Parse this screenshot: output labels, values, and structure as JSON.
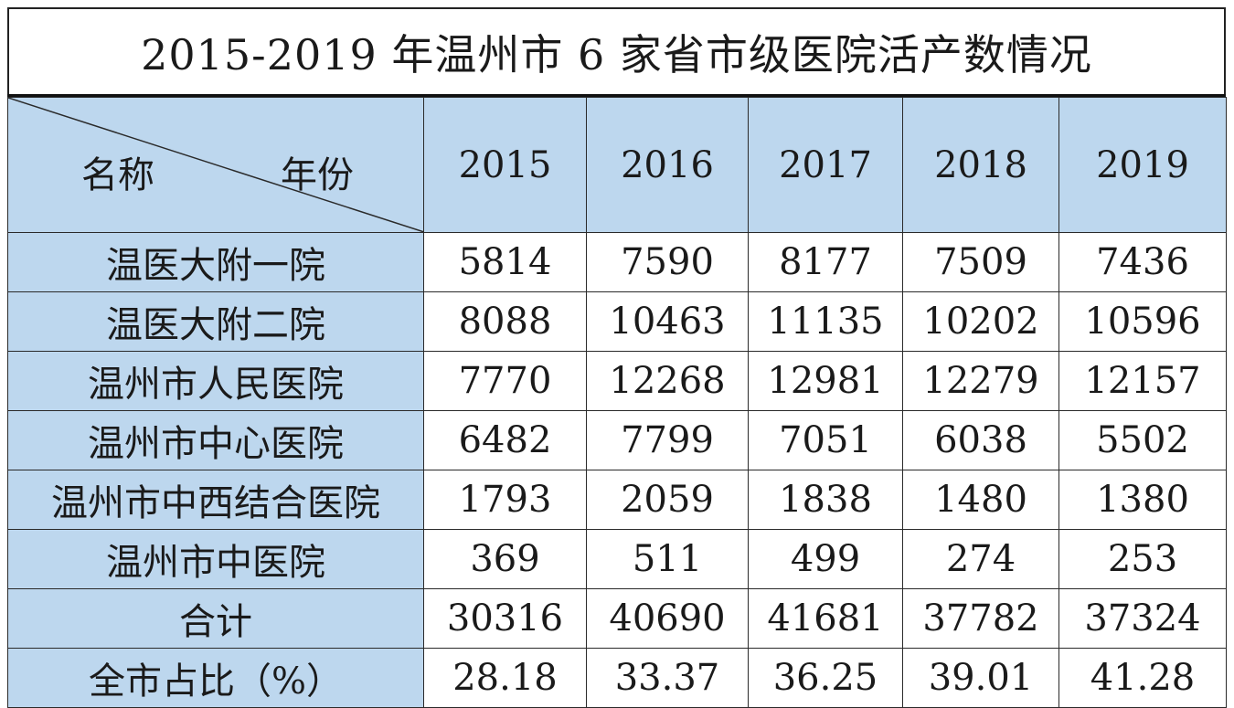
{
  "title": "2015-2019 年温州市 6 家省市级医院活产数情况",
  "header": {
    "corner_left": "名称",
    "corner_right": "年份",
    "years": [
      "2015",
      "2016",
      "2017",
      "2018",
      "2019"
    ]
  },
  "rows": [
    {
      "name": "温医大附一院",
      "values": [
        "5814",
        "7590",
        "8177",
        "7509",
        "7436"
      ]
    },
    {
      "name": "温医大附二院",
      "values": [
        "8088",
        "10463",
        "11135",
        "10202",
        "10596"
      ]
    },
    {
      "name": "温州市人民医院",
      "values": [
        "7770",
        "12268",
        "12981",
        "12279",
        "12157"
      ]
    },
    {
      "name": "温州市中心医院",
      "values": [
        "6482",
        "7799",
        "7051",
        "6038",
        "5502"
      ]
    },
    {
      "name": "温州市中西结合医院",
      "values": [
        "1793",
        "2059",
        "1838",
        "1480",
        "1380"
      ]
    },
    {
      "name": "温州市中医院",
      "values": [
        "369",
        "511",
        "499",
        "274",
        "253"
      ]
    },
    {
      "name": "合计",
      "values": [
        "30316",
        "40690",
        "41681",
        "37782",
        "37324"
      ]
    },
    {
      "name": "全市占比（%）",
      "values": [
        "28.18",
        "33.37",
        "36.25",
        "39.01",
        "41.28"
      ]
    }
  ],
  "colors": {
    "header_fill": "#bdd7ee",
    "grid_line": "#2a2a2a",
    "cell_fill": "#ffffff"
  },
  "chart_data": {
    "type": "table",
    "title": "2015-2019 年温州市 6 家省市级医院活产数情况",
    "columns": [
      "2015",
      "2016",
      "2017",
      "2018",
      "2019"
    ],
    "row_labels": [
      "温医大附一院",
      "温医大附二院",
      "温州市人民医院",
      "温州市中心医院",
      "温州市中西结合医院",
      "温州市中医院",
      "合计",
      "全市占比（%）"
    ],
    "values": [
      [
        5814,
        7590,
        8177,
        7509,
        7436
      ],
      [
        8088,
        10463,
        11135,
        10202,
        10596
      ],
      [
        7770,
        12268,
        12981,
        12279,
        12157
      ],
      [
        6482,
        7799,
        7051,
        6038,
        5502
      ],
      [
        1793,
        2059,
        1838,
        1480,
        1380
      ],
      [
        369,
        511,
        499,
        274,
        253
      ],
      [
        30316,
        40690,
        41681,
        37782,
        37324
      ],
      [
        28.18,
        33.37,
        36.25,
        39.01,
        41.28
      ]
    ]
  }
}
